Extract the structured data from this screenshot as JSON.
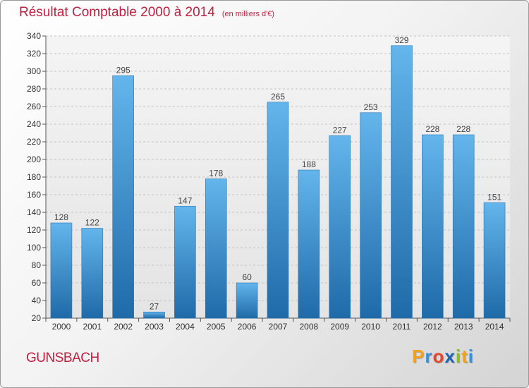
{
  "title": "Résultat Comptable 2000 à 2014",
  "subtitle": "(en milliers d'€)",
  "location": "GUNSBACH",
  "logo": {
    "letters": [
      "P",
      "r",
      "o",
      "x",
      "i",
      "t",
      "i"
    ],
    "colors": [
      "#f2a21c",
      "#3a8fd6",
      "#e6462e",
      "#1f63b3",
      "#8bbf2a",
      "#f2a21c",
      "#3a8fd6"
    ]
  },
  "colors": {
    "title": "#c0203f",
    "bar_top": "#63b5ec",
    "bar_bottom": "#1f6aa8",
    "label": "#444444"
  },
  "chart_data": {
    "type": "bar",
    "categories": [
      "2000",
      "2001",
      "2002",
      "2003",
      "2004",
      "2005",
      "2006",
      "2007",
      "2008",
      "2009",
      "2010",
      "2011",
      "2012",
      "2013",
      "2014"
    ],
    "values": [
      128,
      122,
      295,
      27,
      147,
      178,
      60,
      265,
      188,
      227,
      253,
      329,
      228,
      228,
      151
    ],
    "ylim": [
      20,
      340
    ],
    "yticks": [
      20,
      40,
      60,
      80,
      100,
      120,
      140,
      160,
      180,
      200,
      220,
      240,
      260,
      280,
      300,
      320,
      340
    ],
    "grid": true
  }
}
